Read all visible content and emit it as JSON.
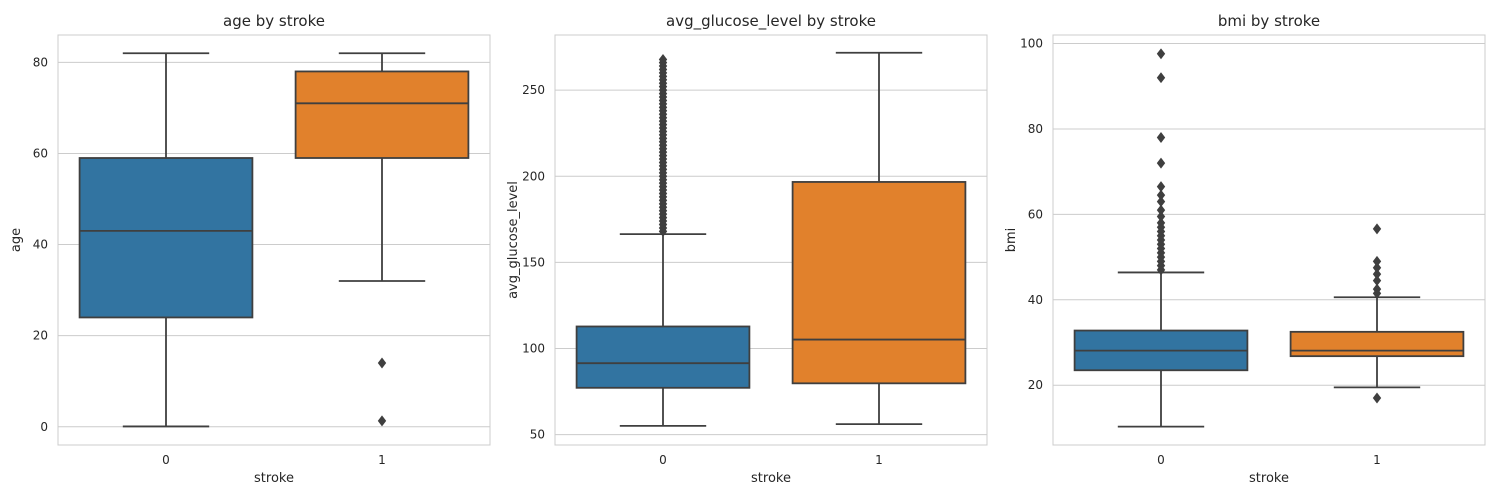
{
  "chart_data": [
    {
      "type": "box",
      "title": "age by stroke",
      "xlabel": "stroke",
      "ylabel": "age",
      "categories": [
        "0",
        "1"
      ],
      "yticks": [
        0,
        20,
        40,
        60,
        80
      ],
      "ylim": [
        -4,
        86
      ],
      "boxes": [
        {
          "whislo": 0.08,
          "q1": 24,
          "median": 43,
          "q3": 59,
          "whishi": 82,
          "color": "#3274a1",
          "fliers": []
        },
        {
          "whislo": 32,
          "q1": 59,
          "median": 71,
          "q3": 78,
          "whishi": 82,
          "color": "#e1812c",
          "fliers": [
            14,
            1.3
          ]
        }
      ]
    },
    {
      "type": "box",
      "title": "avg_glucose_level by stroke",
      "xlabel": "stroke",
      "ylabel": "avg_glucose_level",
      "categories": [
        "0",
        "1"
      ],
      "yticks": [
        50,
        100,
        150,
        200,
        250
      ],
      "ylim": [
        44,
        282
      ],
      "boxes": [
        {
          "whislo": 55.1,
          "q1": 77.2,
          "median": 91.5,
          "q3": 112.8,
          "whishi": 166.4,
          "color": "#3274a1",
          "fliers": [
            168,
            170,
            172,
            174,
            176,
            178,
            180,
            182,
            184,
            186,
            188,
            190,
            192,
            194,
            196,
            198,
            200,
            202,
            204,
            206,
            208,
            210,
            212,
            214,
            216,
            218,
            220,
            222,
            224,
            226,
            228,
            230,
            232,
            234,
            236,
            238,
            240,
            242,
            244,
            246,
            248,
            250,
            252,
            254,
            256,
            258,
            260,
            262,
            264,
            266,
            267.8
          ]
        },
        {
          "whislo": 56.1,
          "q1": 79.8,
          "median": 105.2,
          "q3": 196.7,
          "whishi": 271.7,
          "color": "#e1812c",
          "fliers": []
        }
      ]
    },
    {
      "type": "box",
      "title": "bmi by stroke",
      "xlabel": "stroke",
      "ylabel": "bmi",
      "categories": [
        "0",
        "1"
      ],
      "yticks": [
        20,
        40,
        60,
        80,
        100
      ],
      "ylim": [
        6,
        102
      ],
      "boxes": [
        {
          "whislo": 10.3,
          "q1": 23.5,
          "median": 28.1,
          "q3": 32.8,
          "whishi": 46.4,
          "color": "#3274a1",
          "fliers": [
            47,
            48,
            49,
            50,
            51,
            52,
            53,
            54,
            55,
            56,
            57,
            58,
            59.5,
            61,
            63,
            64.5,
            66.5,
            72,
            78,
            92,
            97.6
          ]
        },
        {
          "whislo": 19.5,
          "q1": 26.8,
          "median": 28.1,
          "q3": 32.5,
          "whishi": 40.6,
          "color": "#e1812c",
          "fliers": [
            41.5,
            42.5,
            44.5,
            46,
            47.5,
            49,
            56.6,
            17
          ]
        }
      ]
    }
  ]
}
